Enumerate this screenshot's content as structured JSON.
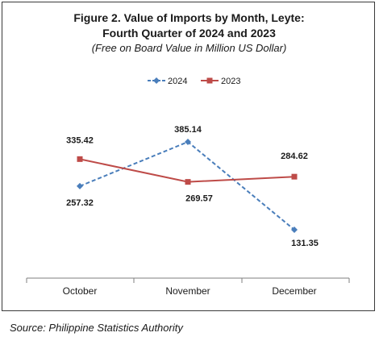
{
  "chart_data": {
    "type": "line",
    "title_line1": "Figure 2. Value of Imports by Month, Leyte:",
    "title_line2": "Fourth Quarter of  2024 and 2023",
    "subtitle": "(Free on Board Value in Million US Dollar)",
    "categories": [
      "October",
      "November",
      "December"
    ],
    "series": [
      {
        "name": "2024",
        "values": [
          257.32,
          385.14,
          131.35
        ],
        "color": "#4a7ebb",
        "style": "dashed",
        "marker": "diamond"
      },
      {
        "name": "2023",
        "values": [
          335.42,
          269.57,
          284.62
        ],
        "color": "#be4b48",
        "style": "solid",
        "marker": "square"
      }
    ],
    "data_labels": [
      [
        "257.32",
        "385.14",
        "131.35"
      ],
      [
        "335.42",
        "269.57",
        "284.62"
      ]
    ],
    "legend_position": "top",
    "grid": false
  },
  "source": "Source: Philippine Statistics Authority"
}
